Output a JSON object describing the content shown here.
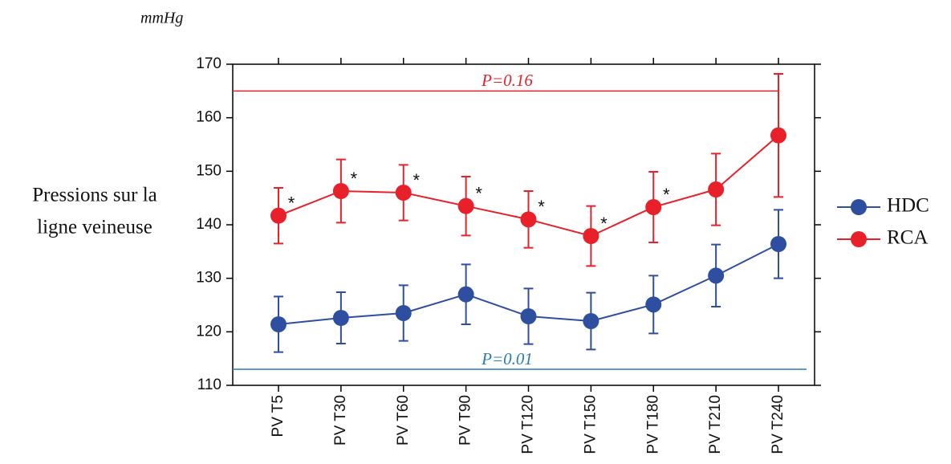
{
  "chart_data": {
    "type": "line",
    "unit": "mmHg",
    "ylabel": [
      "Pressions sur la",
      "ligne veineuse"
    ],
    "categories": [
      "PV T5",
      "PV T30",
      "PV T60",
      "PV T90",
      "PV T120",
      "PV T150",
      "PV T180",
      "PV T210",
      "PV T240"
    ],
    "series": [
      {
        "name": "HDC",
        "color": "#2e4fa0",
        "values": [
          121.4,
          122.6,
          123.5,
          127,
          122.9,
          122,
          125.1,
          130.5,
          136.4
        ],
        "errors": [
          5.2,
          4.8,
          5.2,
          5.6,
          5.2,
          5.3,
          5.4,
          5.8,
          6.4
        ]
      },
      {
        "name": "RCA",
        "color": "#e8202a",
        "values": [
          141.7,
          146.3,
          146,
          143.5,
          141,
          137.9,
          143.3,
          146.6,
          156.7
        ],
        "errors": [
          5.2,
          5.9,
          5.2,
          5.5,
          5.3,
          5.6,
          6.6,
          6.7,
          11.5
        ],
        "stars": [
          "*",
          "*",
          "*",
          "*",
          "*",
          "*",
          "*",
          null,
          null
        ]
      }
    ],
    "reference_lines": [
      {
        "label": "P=0.16",
        "value": 165,
        "color": "#e8202a"
      },
      {
        "label": "P=0.01",
        "value": 113,
        "color": "#2a7bb5"
      }
    ],
    "ylim": [
      110,
      170
    ],
    "yticks": [
      110,
      120,
      130,
      140,
      150,
      160,
      170
    ]
  }
}
